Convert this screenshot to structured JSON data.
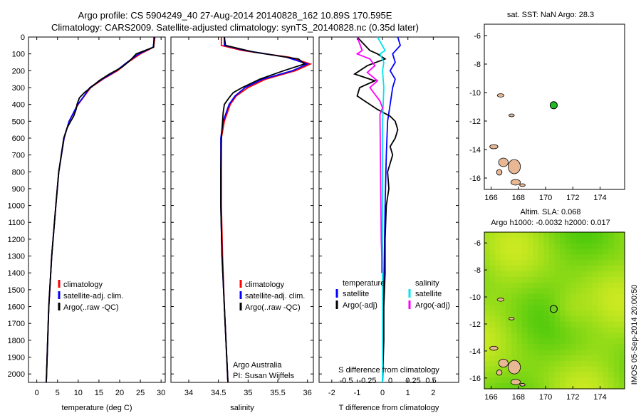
{
  "header": {
    "line1": "Argo profile: CS 5904249_40 27-Aug-2014 20140828_162 10.89S 170.595E",
    "line2": "Climatology: CARS2009. Satellite-adjusted climatology: synTS_20140828.nc (0.35d later)"
  },
  "colors": {
    "climatology": "#ff0000",
    "satellite": "#0000ff",
    "argo": "#000000",
    "salinity_satellite": "#00e5ee",
    "salinity_argo": "#ff00ff",
    "land": "#e8b895",
    "float_marker": "#22bb22"
  },
  "chart_data": [
    {
      "type": "line",
      "panel": "temperature",
      "xlabel": "temperature (deg C)",
      "ylabel": "",
      "xlim": [
        -2,
        31
      ],
      "ylim": [
        2050,
        0
      ],
      "xticks": [
        "0",
        "5",
        "10",
        "15",
        "20",
        "25",
        "30"
      ],
      "yticks": [
        "0",
        "100",
        "200",
        "300",
        "400",
        "500",
        "600",
        "700",
        "800",
        "900",
        "1000",
        "1100",
        "1200",
        "1300",
        "1400",
        "1500",
        "1600",
        "1700",
        "1800",
        "1900",
        "2000"
      ],
      "legend": [
        "climatology",
        "satellite-adj. clim.",
        "Argo(..raw -QC)"
      ],
      "series": [
        {
          "name": "climatology",
          "color": "#ff0000",
          "depth": [
            0,
            60,
            100,
            150,
            200,
            250,
            300,
            350,
            400,
            500,
            600,
            800,
            1000,
            1300,
            1600,
            2050
          ],
          "values": [
            28.5,
            28.2,
            25.0,
            22.0,
            19.5,
            16.0,
            13.0,
            11.5,
            10.0,
            7.8,
            6.6,
            5.3,
            4.6,
            3.6,
            2.9,
            2.3
          ]
        },
        {
          "name": "satellite-adj. clim.",
          "color": "#0000ff",
          "depth": [
            0,
            60,
            100,
            150,
            200,
            250,
            300,
            350,
            400,
            500,
            600,
            800,
            1000,
            1300,
            1600,
            2050
          ],
          "values": [
            28.4,
            28.1,
            24.6,
            21.8,
            19.2,
            15.8,
            12.8,
            11.4,
            9.9,
            7.8,
            6.6,
            5.3,
            4.6,
            3.6,
            2.9,
            2.3
          ]
        },
        {
          "name": "Argo(..raw -QC)",
          "color": "#000000",
          "depth": [
            0,
            60,
            100,
            140,
            180,
            220,
            260,
            300,
            330,
            360,
            400,
            430,
            470,
            500,
            540,
            600,
            700,
            800,
            1000,
            1300,
            1600,
            2050
          ],
          "values": [
            28.3,
            28.2,
            24.0,
            22.5,
            20.5,
            17.5,
            15.0,
            13.0,
            11.5,
            10.3,
            9.7,
            9.5,
            8.9,
            8.2,
            7.3,
            6.5,
            5.9,
            5.3,
            4.6,
            3.6,
            2.9,
            2.3
          ]
        }
      ]
    },
    {
      "type": "line",
      "panel": "salinity",
      "xlabel": "salinity",
      "ylabel": "",
      "xlim": [
        33.7,
        36.1
      ],
      "ylim": [
        2050,
        0
      ],
      "xticks": [
        "34",
        "34.5",
        "35",
        "35.5",
        "36"
      ],
      "legend": [
        "climatology",
        "satellite-adj. clim.",
        "Argo(..raw -QC)"
      ],
      "annotation": [
        "Argo Australia",
        "PI: Susan Wijffels"
      ],
      "series": [
        {
          "name": "climatology",
          "color": "#ff0000",
          "depth": [
            0,
            50,
            80,
            120,
            160,
            200,
            250,
            300,
            350,
            400,
            500,
            600,
            800,
            1000,
            1300,
            1600,
            2050
          ],
          "values": [
            34.55,
            34.55,
            34.9,
            35.7,
            36.05,
            35.8,
            35.3,
            35.0,
            34.8,
            34.7,
            34.6,
            34.55,
            34.55,
            34.55,
            34.57,
            34.6,
            34.66
          ]
        },
        {
          "name": "satellite-adj. clim.",
          "color": "#0000ff",
          "depth": [
            0,
            50,
            80,
            120,
            160,
            200,
            250,
            300,
            350,
            400,
            500,
            600,
            800,
            1000,
            1300,
            1600,
            2050
          ],
          "values": [
            34.6,
            34.6,
            34.95,
            35.65,
            36.0,
            35.75,
            35.25,
            34.95,
            34.78,
            34.68,
            34.58,
            34.54,
            34.54,
            34.54,
            34.56,
            34.6,
            34.66
          ]
        },
        {
          "name": "Argo(..raw -QC)",
          "color": "#000000",
          "depth": [
            0,
            50,
            90,
            130,
            160,
            200,
            250,
            300,
            330,
            360,
            400,
            450,
            500,
            600,
            800,
            1000,
            1300,
            1600,
            2050
          ],
          "values": [
            34.6,
            34.62,
            35.1,
            35.85,
            35.95,
            35.6,
            35.2,
            34.9,
            34.75,
            34.68,
            34.6,
            34.58,
            34.57,
            34.55,
            34.54,
            34.54,
            34.56,
            34.6,
            34.66
          ]
        }
      ]
    },
    {
      "type": "line",
      "panel": "differences",
      "xlabel": "T difference from climatology",
      "xlabel2": "S difference from climatology",
      "xlim": [
        -2.5,
        3
      ],
      "ylim": [
        2050,
        0
      ],
      "xticks": [
        "-2",
        "-1",
        "0",
        "1",
        "2"
      ],
      "xticks2": [
        "-0.5",
        "-0.25",
        "0",
        "0.25",
        "0.5"
      ],
      "legend_left_title": "temperature",
      "legend_right_title": "salinity",
      "legend_left": [
        "satellite",
        "Argo(-adj)"
      ],
      "legend_right": [
        "satellite",
        "Argo(-adj)"
      ],
      "series": [
        {
          "name": "temperature satellite",
          "color": "#0000ff",
          "depth": [
            0,
            50,
            100,
            150,
            200,
            250,
            300,
            400,
            500,
            700,
            1000,
            1500,
            2050
          ],
          "values": [
            0.6,
            0.7,
            0.4,
            0.5,
            0.3,
            0.5,
            0.4,
            0.3,
            0.2,
            0.15,
            0.1,
            0.05,
            0.0
          ]
        },
        {
          "name": "temperature Argo(-adj)",
          "color": "#000000",
          "depth": [
            0,
            80,
            100,
            130,
            170,
            220,
            260,
            300,
            350,
            390,
            430,
            470,
            500,
            550,
            600,
            650,
            700,
            800,
            900,
            1000,
            1200,
            1400,
            1600,
            1800,
            2050
          ],
          "values": [
            -1.0,
            -0.5,
            -0.2,
            0.1,
            -0.6,
            -1.1,
            -0.3,
            -0.9,
            -1.0,
            -0.6,
            -0.2,
            0.3,
            0.5,
            0.6,
            0.5,
            0.3,
            0.4,
            0.2,
            0.25,
            0.15,
            0.1,
            0.1,
            0.05,
            0.05,
            0.0
          ]
        },
        {
          "name": "salinity satellite",
          "color": "#00e5ee",
          "depth": [
            0,
            80,
            100,
            150,
            200,
            300,
            500,
            800,
            1200,
            2050
          ],
          "values": [
            -0.2,
            0.1,
            -0.1,
            0.05,
            0.0,
            0.05,
            0.0,
            0.0,
            0.0,
            0.0
          ]
        },
        {
          "name": "salinity Argo(-adj)",
          "color": "#ff00ff",
          "depth": [
            0,
            80,
            100,
            130,
            170,
            210,
            260,
            300,
            340,
            380,
            420,
            460,
            1200,
            1300,
            1400
          ],
          "values": [
            -1.0,
            -0.8,
            -1.0,
            -0.5,
            -0.3,
            -0.6,
            -0.2,
            -0.5,
            -0.3,
            -0.1,
            0.0,
            -0.1,
            -0.05,
            -0.03,
            -0.03
          ]
        }
      ]
    },
    {
      "type": "scatter",
      "panel": "sst-map",
      "title": "sat. SST: NaN Argo: 28.3",
      "xlim": [
        165.5,
        175.8
      ],
      "ylim": [
        -16.8,
        -5.2
      ],
      "xticks": [
        "166",
        "168",
        "170",
        "172",
        "174"
      ],
      "yticks": [
        "-6",
        "-8",
        "-10",
        "-12",
        "-14",
        "-16"
      ],
      "argo_position": {
        "lon": 170.595,
        "lat": -10.89
      }
    },
    {
      "type": "heatmap",
      "panel": "sla-map",
      "title_line1": "Altim. SLA: 0.068",
      "title_line2": "Argo h1000: -0.0032 h2000: 0.017",
      "xlim": [
        165.5,
        175.8
      ],
      "ylim": [
        -16.8,
        -5.2
      ],
      "xticks": [
        "166",
        "168",
        "170",
        "172",
        "174"
      ],
      "yticks": [
        "-6",
        "-8",
        "-10",
        "-12",
        "-14",
        "-16"
      ],
      "argo_position": {
        "lon": 170.595,
        "lat": -10.89
      },
      "side_label": "IMOS 05-Sep-2014 20:00:50"
    }
  ]
}
